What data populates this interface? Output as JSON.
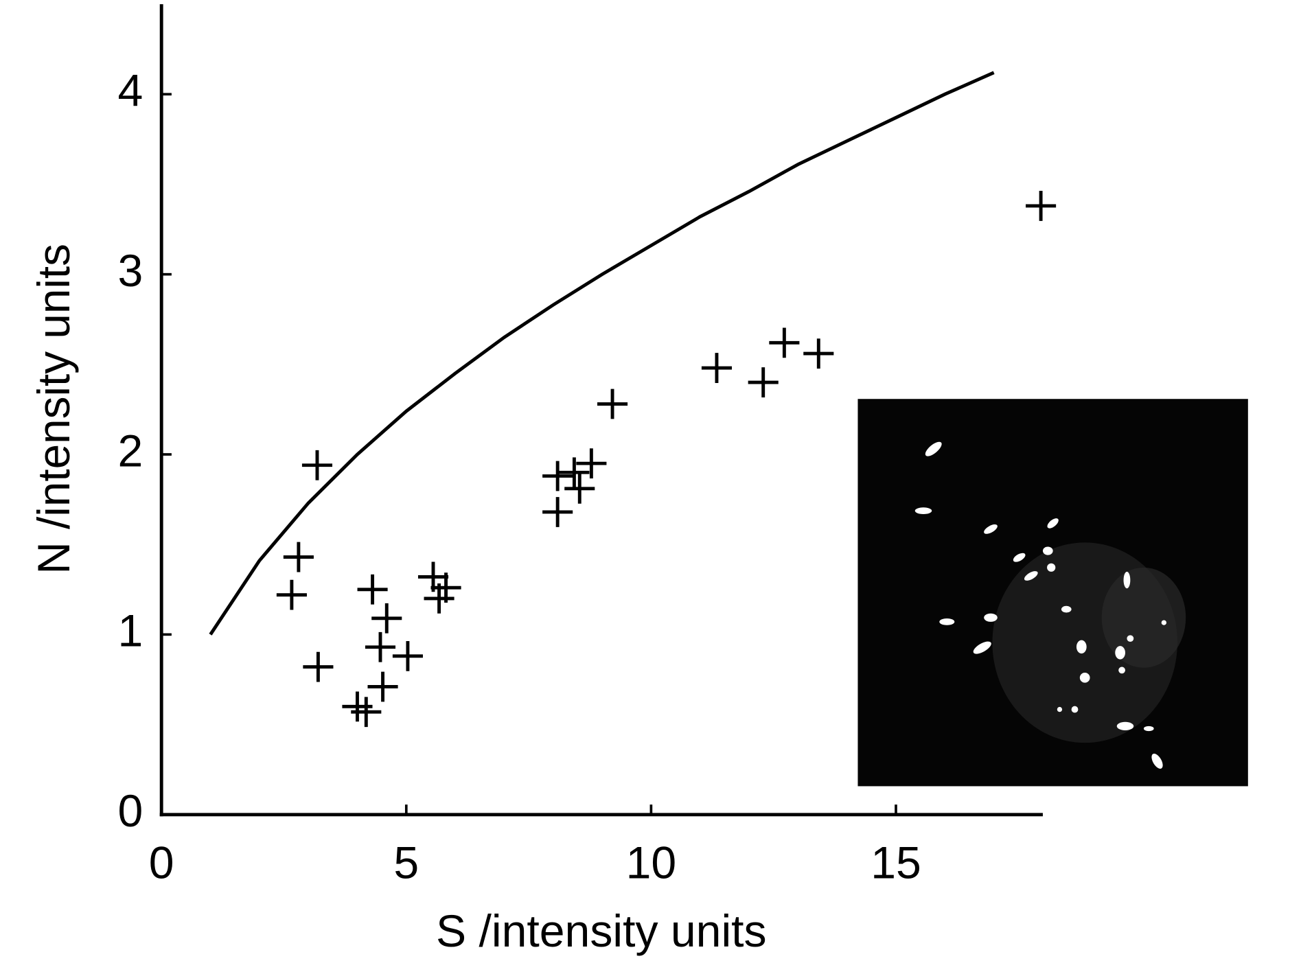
{
  "chart_data": {
    "type": "scatter",
    "xlabel": "S /intensity units",
    "ylabel": "N /intensity units",
    "xlim": [
      0,
      18
    ],
    "ylim": [
      0,
      4.5
    ],
    "xticks": [
      0,
      5,
      10,
      15
    ],
    "yticks": [
      0,
      1,
      2,
      3,
      4
    ],
    "color": "#000000",
    "x": [
      3.18,
      2.8,
      2.66,
      3.2,
      4.31,
      4.6,
      4.47,
      5.03,
      4.52,
      4.0,
      4.18,
      5.55,
      5.81,
      5.67,
      8.09,
      8.09,
      8.43,
      8.78,
      8.54,
      9.21,
      11.34,
      12.29,
      12.72,
      13.42,
      17.96
    ],
    "y": [
      1.94,
      1.43,
      1.22,
      0.82,
      1.25,
      1.09,
      0.93,
      0.88,
      0.71,
      0.6,
      0.57,
      1.32,
      1.26,
      1.2,
      1.68,
      1.88,
      1.9,
      1.95,
      1.81,
      2.28,
      2.48,
      2.4,
      2.62,
      2.56,
      3.38
    ],
    "curve": {
      "x": [
        1,
        2,
        3,
        4,
        5,
        6,
        7,
        8,
        9,
        10,
        11,
        12,
        13,
        14,
        15,
        16,
        17
      ],
      "y": [
        1,
        1.41,
        1.73,
        2,
        2.24,
        2.45,
        2.65,
        2.83,
        3,
        3.16,
        3.32,
        3.46,
        3.61,
        3.74,
        3.87,
        4,
        4.12
      ]
    }
  }
}
